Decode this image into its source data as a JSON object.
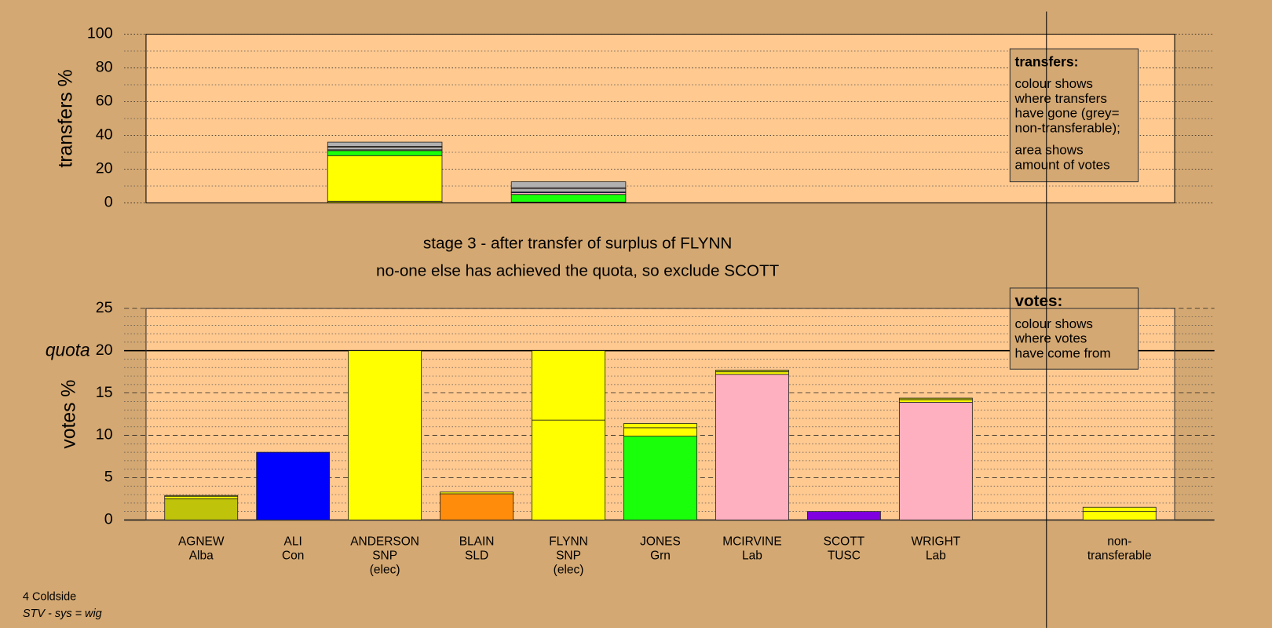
{
  "chart_data": [
    {
      "type": "bar",
      "stacked": true,
      "ylabel": "transfers %",
      "ylim": [
        0,
        100
      ],
      "yticks": [
        0,
        20,
        40,
        60,
        80,
        100
      ],
      "minor_yticks": [
        10,
        30,
        50,
        70,
        90
      ],
      "grid": true,
      "bar_width": 141,
      "note": {
        "title": "transfers:",
        "paragraphs": [
          [
            "colour shows",
            "where transfers",
            "have gone (grey=",
            "non-transferable);"
          ],
          [
            "area shows",
            "amount of votes"
          ]
        ]
      },
      "bars": [
        {
          "segments": []
        },
        {
          "segments": []
        },
        {
          "segments": [
            {
              "color": "#bfc40a",
              "value": 1
            },
            {
              "color": "#ffff00",
              "value": 27
            },
            {
              "color": "#1aff0a",
              "value": 3
            },
            {
              "color": "#ffb0c0",
              "value": 0.5
            },
            {
              "color": "#b0b0b0",
              "value": 1.5
            },
            {
              "color": "#ffc990",
              "value": 0.5
            },
            {
              "color": "#b0b0b0",
              "value": 2.5
            }
          ]
        },
        {
          "segments": []
        },
        {
          "segments": [
            {
              "color": "#ffff00",
              "value": 0.5
            },
            {
              "color": "#1aff0a",
              "value": 4.5
            },
            {
              "color": "#ffb0c0",
              "value": 1
            },
            {
              "color": "#0000ff",
              "value": 0.5
            },
            {
              "color": "#b0b0b0",
              "value": 2
            },
            {
              "color": "#ffb0c0",
              "value": 0.5
            },
            {
              "color": "#b0b0b0",
              "value": 3.5
            }
          ]
        },
        {
          "segments": []
        },
        {
          "segments": []
        },
        {
          "segments": []
        },
        {
          "segments": []
        },
        {
          "segments": []
        },
        {
          "segments": []
        }
      ]
    },
    {
      "type": "bar",
      "stacked": true,
      "ylabel": "votes %",
      "ylim": [
        0,
        25
      ],
      "yticks": [
        0,
        5,
        10,
        15,
        20,
        25
      ],
      "minor_yticks": [
        1,
        2,
        3,
        4,
        6,
        7,
        8,
        9,
        11,
        12,
        13,
        14,
        16,
        17,
        18,
        19,
        21,
        22,
        23,
        24
      ],
      "grid": true,
      "bar_width": 90,
      "quota": {
        "value": 20,
        "label": "quota"
      },
      "note": {
        "title": "votes:",
        "paragraphs": [
          [
            "colour shows",
            "where votes",
            "have come from"
          ]
        ]
      },
      "categories": [
        [
          "AGNEW",
          "Alba"
        ],
        [
          "ALI",
          "Con"
        ],
        [
          "ANDERSON",
          "SNP",
          "(elec)"
        ],
        [
          "BLAIN",
          "SLD"
        ],
        [
          "FLYNN",
          "SNP",
          "(elec)"
        ],
        [
          "JONES",
          "Grn"
        ],
        [
          "MCIRVINE",
          "Lab"
        ],
        [
          "SCOTT",
          "TUSC"
        ],
        [
          "WRIGHT",
          "Lab"
        ],
        null,
        [
          "non-",
          "transferable"
        ]
      ],
      "bars": [
        {
          "segments": [
            {
              "color": "#bfc40a",
              "value": 2.5
            },
            {
              "color": "#ffff00",
              "value": 0.3
            },
            {
              "color": "#bfc40a",
              "value": 0.1
            }
          ]
        },
        {
          "segments": [
            {
              "color": "#0000ff",
              "value": 8.0
            }
          ]
        },
        {
          "segments": [
            {
              "color": "#ffff00",
              "value": 20
            }
          ]
        },
        {
          "segments": [
            {
              "color": "#ff8c0a",
              "value": 3.1
            },
            {
              "color": "#ffff00",
              "value": 0.2
            }
          ]
        },
        {
          "segments": [
            {
              "color": "#ffff00",
              "value": 11.8
            },
            {
              "color": "#ffff00",
              "value": 8.2
            }
          ]
        },
        {
          "segments": [
            {
              "color": "#1aff0a",
              "value": 9.9
            },
            {
              "color": "#ffff00",
              "value": 1.0
            },
            {
              "color": "#ffff00",
              "value": 0.5
            }
          ]
        },
        {
          "segments": [
            {
              "color": "#ffb0c0",
              "value": 17.2
            },
            {
              "color": "#ffff00",
              "value": 0.3
            },
            {
              "color": "#bfc40a",
              "value": 0.2
            }
          ]
        },
        {
          "segments": [
            {
              "color": "#8000e0",
              "value": 1.0
            }
          ]
        },
        {
          "segments": [
            {
              "color": "#ffb0c0",
              "value": 13.9
            },
            {
              "color": "#ffff00",
              "value": 0.3
            },
            {
              "color": "#bfc40a",
              "value": 0.2
            }
          ]
        },
        {
          "segments": []
        },
        {
          "segments": [
            {
              "color": "#ffff00",
              "value": 1.0
            },
            {
              "color": "#ffff00",
              "value": 0.5
            }
          ]
        }
      ]
    }
  ],
  "captions": [
    "stage 3 - after transfer of surplus of FLYNN",
    "no-one else has achieved the quota, so exclude SCOTT"
  ],
  "footer": [
    "4 Coldside",
    "STV - sys = wig"
  ]
}
